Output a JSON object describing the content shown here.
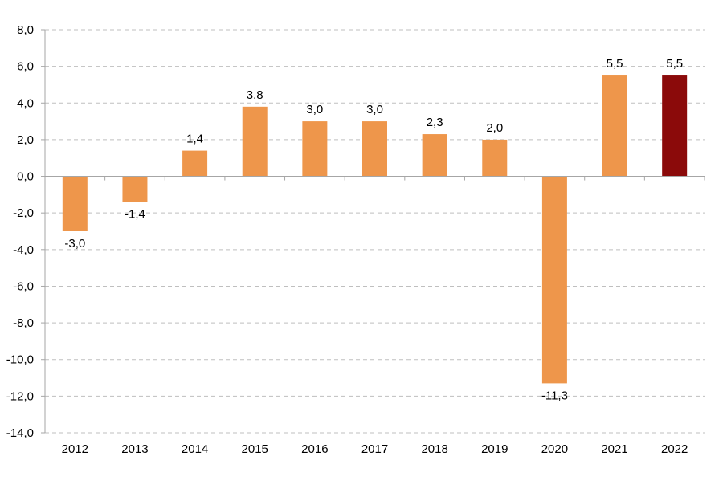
{
  "chart_data": {
    "type": "bar",
    "title": "",
    "xlabel": "",
    "ylabel": "",
    "categories": [
      "2012",
      "2013",
      "2014",
      "2015",
      "2016",
      "2017",
      "2018",
      "2019",
      "2020",
      "2021",
      "2022"
    ],
    "values": [
      -3.0,
      -1.4,
      1.4,
      3.8,
      3.0,
      3.0,
      2.3,
      2.0,
      -11.3,
      5.5,
      5.5
    ],
    "value_labels": [
      "-3,0",
      "-1,4",
      "1,4",
      "3,8",
      "3,0",
      "3,0",
      "2,3",
      "2,0",
      "-11,3",
      "5,5",
      "5,5"
    ],
    "ylim": [
      -14,
      8
    ],
    "yticks": [
      8,
      6,
      4,
      2,
      0,
      -2,
      -4,
      -6,
      -8,
      -10,
      -12,
      -14
    ],
    "ytick_labels": [
      "8,0",
      "6,0",
      "4,0",
      "2,0",
      "0,0",
      "-2,0",
      "-4,0",
      "-6,0",
      "-8,0",
      "-10,0",
      "-12,0",
      "-14,0"
    ],
    "grid": true,
    "legend": false,
    "colors": {
      "default": "#ee964b",
      "highlight": "#8b0a0a"
    },
    "highlight_index": 10
  }
}
